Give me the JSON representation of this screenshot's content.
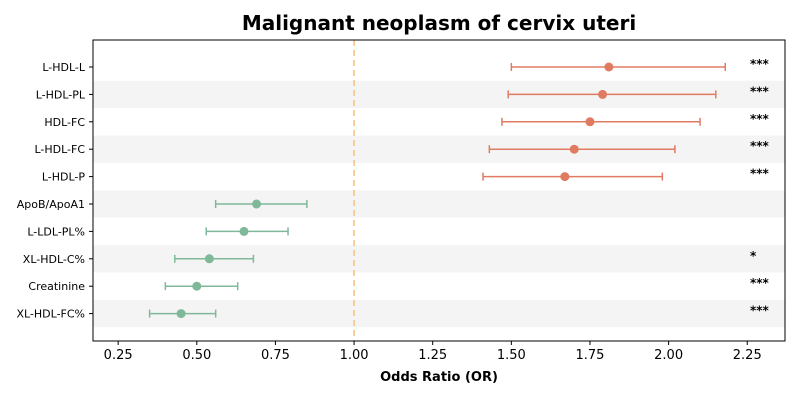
{
  "chart_data": {
    "type": "forest",
    "title": "Malignant neoplasm of cervix uteri",
    "xlabel": "Odds Ratio (OR)",
    "ylabel": "",
    "xlim": [
      0.17,
      2.37
    ],
    "xticks": [
      0.25,
      0.5,
      0.75,
      1.0,
      1.25,
      1.5,
      1.75,
      2.0,
      2.25
    ],
    "xtick_labels": [
      "0.25",
      "0.50",
      "0.75",
      "1.00",
      "1.25",
      "1.50",
      "1.75",
      "2.00",
      "2.25"
    ],
    "reference_line": 1.0,
    "grid": false,
    "alternating_row_shading": true,
    "colors": {
      "risk": "#e07b62",
      "protective": "#80b89a",
      "reference_line": "#f5c27a",
      "row_shade": "#f4f4f4"
    },
    "rows": [
      {
        "label": "L-HDL-L",
        "or": 1.81,
        "ci_low": 1.5,
        "ci_high": 2.18,
        "sig": "***"
      },
      {
        "label": "L-HDL-PL",
        "or": 1.79,
        "ci_low": 1.49,
        "ci_high": 2.15,
        "sig": "***"
      },
      {
        "label": "HDL-FC",
        "or": 1.75,
        "ci_low": 1.47,
        "ci_high": 2.1,
        "sig": "***"
      },
      {
        "label": "L-HDL-FC",
        "or": 1.7,
        "ci_low": 1.43,
        "ci_high": 2.02,
        "sig": "***"
      },
      {
        "label": "L-HDL-P",
        "or": 1.67,
        "ci_low": 1.41,
        "ci_high": 1.98,
        "sig": "***"
      },
      {
        "label": "ApoB/ApoA1",
        "or": 0.69,
        "ci_low": 0.56,
        "ci_high": 0.85,
        "sig": ""
      },
      {
        "label": "L-LDL-PL%",
        "or": 0.65,
        "ci_low": 0.53,
        "ci_high": 0.79,
        "sig": ""
      },
      {
        "label": "XL-HDL-C%",
        "or": 0.54,
        "ci_low": 0.43,
        "ci_high": 0.68,
        "sig": "*"
      },
      {
        "label": "Creatinine",
        "or": 0.5,
        "ci_low": 0.4,
        "ci_high": 0.63,
        "sig": "***"
      },
      {
        "label": "XL-HDL-FC%",
        "or": 0.45,
        "ci_low": 0.35,
        "ci_high": 0.56,
        "sig": "***"
      }
    ]
  }
}
